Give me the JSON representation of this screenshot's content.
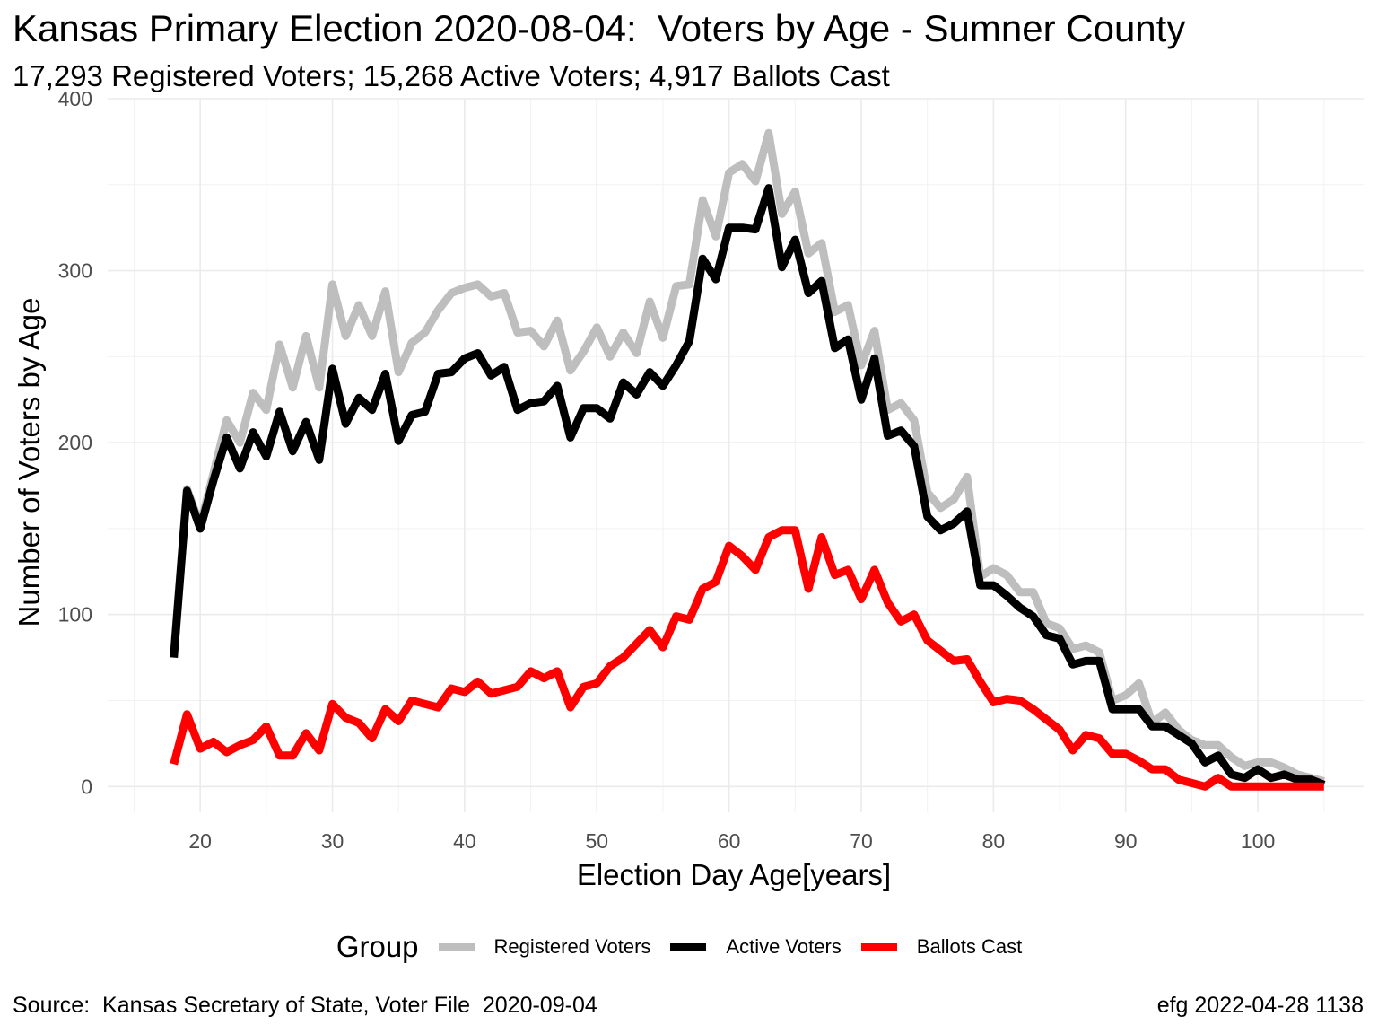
{
  "chart_data": {
    "type": "line",
    "title": "Kansas Primary Election 2020-08-04:  Voters by Age - Sumner County",
    "subtitle": "17,293 Registered Voters; 15,268 Active Voters; 4,917 Ballots Cast",
    "xlabel": "Election Day Age[years]",
    "ylabel": "Number of Voters by Age",
    "xlim": [
      13,
      108
    ],
    "ylim": [
      -15,
      400
    ],
    "x_ticks": [
      20,
      30,
      40,
      50,
      60,
      70,
      80,
      90,
      100
    ],
    "y_ticks": [
      0,
      100,
      200,
      300,
      400
    ],
    "grid": true,
    "legend_title": "Group",
    "legend_position": "bottom",
    "x": [
      18,
      19,
      20,
      21,
      22,
      23,
      24,
      25,
      26,
      27,
      28,
      29,
      30,
      31,
      32,
      33,
      34,
      35,
      36,
      37,
      38,
      39,
      40,
      41,
      42,
      43,
      44,
      45,
      46,
      47,
      48,
      49,
      50,
      51,
      52,
      53,
      54,
      55,
      56,
      57,
      58,
      59,
      60,
      61,
      62,
      63,
      64,
      65,
      66,
      67,
      68,
      69,
      70,
      71,
      72,
      73,
      74,
      75,
      76,
      77,
      78,
      79,
      80,
      81,
      82,
      83,
      84,
      85,
      86,
      87,
      88,
      89,
      90,
      91,
      92,
      93,
      94,
      95,
      96,
      97,
      98,
      99,
      100,
      101,
      102,
      103,
      104,
      105
    ],
    "series": [
      {
        "name": "Registered Voters",
        "color": "#bebebe",
        "values": [
          77,
          173,
          152,
          182,
          213,
          200,
          229,
          219,
          257,
          232,
          262,
          232,
          292,
          262,
          280,
          262,
          288,
          241,
          258,
          264,
          277,
          287,
          290,
          292,
          285,
          287,
          264,
          265,
          256,
          271,
          242,
          253,
          267,
          250,
          264,
          252,
          282,
          261,
          291,
          292,
          341,
          320,
          357,
          362,
          352,
          380,
          333,
          346,
          310,
          316,
          276,
          280,
          245,
          265,
          219,
          223,
          213,
          171,
          162,
          167,
          180,
          122,
          127,
          123,
          113,
          113,
          95,
          92,
          80,
          82,
          78,
          50,
          53,
          60,
          37,
          43,
          33,
          27,
          24,
          24,
          17,
          12,
          14,
          14,
          11,
          7,
          5,
          3
        ]
      },
      {
        "name": "Active Voters",
        "color": "#000000",
        "values": [
          75,
          172,
          150,
          178,
          203,
          185,
          206,
          192,
          218,
          195,
          212,
          190,
          243,
          211,
          226,
          219,
          240,
          201,
          216,
          218,
          240,
          241,
          249,
          252,
          239,
          244,
          219,
          223,
          224,
          233,
          203,
          220,
          220,
          214,
          235,
          228,
          241,
          233,
          245,
          259,
          307,
          295,
          325,
          325,
          324,
          348,
          302,
          318,
          287,
          294,
          255,
          260,
          225,
          249,
          204,
          207,
          198,
          157,
          149,
          153,
          160,
          117,
          117,
          111,
          104,
          99,
          88,
          86,
          71,
          73,
          73,
          45,
          45,
          45,
          35,
          35,
          30,
          25,
          14,
          18,
          7,
          5,
          10,
          5,
          7,
          4,
          4,
          1
        ]
      },
      {
        "name": "Ballots Cast",
        "color": "#ff0000",
        "values": [
          13,
          42,
          22,
          26,
          20,
          24,
          27,
          35,
          18,
          18,
          31,
          21,
          48,
          40,
          37,
          28,
          45,
          38,
          50,
          48,
          46,
          57,
          55,
          61,
          54,
          56,
          58,
          67,
          63,
          67,
          46,
          58,
          60,
          70,
          75,
          83,
          91,
          81,
          99,
          97,
          115,
          119,
          140,
          134,
          126,
          145,
          149,
          149,
          115,
          145,
          123,
          126,
          109,
          126,
          107,
          96,
          100,
          85,
          79,
          73,
          74,
          61,
          49,
          51,
          50,
          45,
          39,
          33,
          21,
          30,
          28,
          19,
          19,
          15,
          10,
          10,
          4,
          2,
          0,
          5,
          0,
          0,
          0,
          0,
          0,
          0,
          0,
          0
        ]
      }
    ]
  },
  "source_caption": "Source:  Kansas Secretary of State, Voter File  2020-09-04",
  "author_caption": "efg 2022-04-28 1138"
}
